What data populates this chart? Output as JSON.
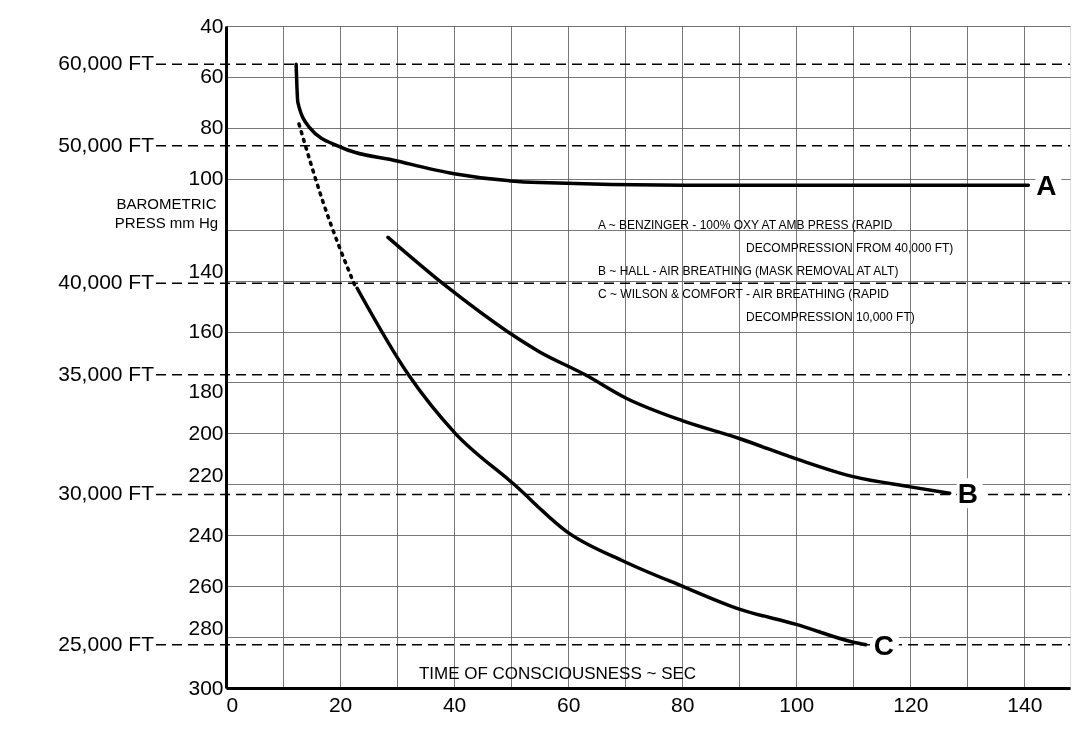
{
  "chart_data": {
    "type": "line",
    "xlabel": "TIME OF CONSCIOUSNESS ~ SEC",
    "ylabel": "BAROMETRIC PRESS mm Hg",
    "xlim": [
      0,
      148
    ],
    "xticks": [
      0,
      {
        "value": 10,
        "label": null
      },
      20,
      {
        "value": 30,
        "label": null
      },
      40,
      {
        "value": 50,
        "label": null
      },
      60,
      {
        "value": 70,
        "label": null
      },
      80,
      {
        "value": 90,
        "label": null
      },
      100,
      {
        "value": 110,
        "label": null
      },
      120,
      {
        "value": 130,
        "label": null
      },
      140
    ],
    "ylim": [
      300,
      40
    ],
    "yticks": [
      40,
      60,
      80,
      100,
      {
        "value": 120,
        "label": null
      },
      140,
      160,
      180,
      200,
      220,
      240,
      260,
      280,
      300
    ],
    "ref_lines": [
      {
        "axis": "y",
        "value": 55,
        "label": "60,000 FT",
        "line_style": "dashed"
      },
      {
        "axis": "y",
        "value": 87,
        "label": "50,000 FT",
        "line_style": "dashed"
      },
      {
        "axis": "y",
        "value": 141,
        "label": "40,000 FT",
        "line_style": "dashed"
      },
      {
        "axis": "y",
        "value": 177,
        "label": "35,000 FT",
        "line_style": "dashed"
      },
      {
        "axis": "y",
        "value": 224,
        "label": "30,000 FT",
        "line_style": "dashed"
      },
      {
        "axis": "y",
        "value": 283,
        "label": "25,000 FT",
        "line_style": "dashed"
      }
    ],
    "grid": true,
    "series": [
      {
        "name": "A",
        "color": "#000000",
        "x": [
          12.3,
          12.6,
          14.7,
          20,
          30,
          40,
          55,
          80,
          140.7
        ],
        "values": [
          55,
          70,
          80,
          87.5,
          93,
          98,
          101.5,
          102.5,
          102.5
        ]
      },
      {
        "name": "B",
        "color": "#000000",
        "x": [
          28.4,
          38.5,
          55,
          63,
          70,
          80,
          90,
          100,
          110,
          120,
          126.9
        ],
        "values": [
          123,
          142,
          168,
          177,
          186,
          195,
          202,
          210,
          217,
          221,
          223.5
        ]
      },
      {
        "color": "#000000",
        "line_style": "dotted",
        "x": [
          12.8,
          17,
          22.6
        ],
        "values": [
          78.5,
          109,
          142
        ]
      },
      {
        "name": "C",
        "color": "#000000",
        "x": [
          23,
          32,
          40.2,
          50.5,
          60,
          70,
          80,
          90,
          100,
          110,
          112.2
        ],
        "values": [
          143,
          177,
          200,
          220,
          239,
          250.5,
          260,
          269,
          275,
          282,
          283
        ]
      }
    ],
    "annotations": [
      "A ~ BENZINGER - 100% OXY AT AMB PRESS (RAPID DECOMPRESSION FROM 40,000 FT)",
      "B ~ HALL - AIR BREATHING (MASK REMOVAL AT ALT)",
      "C ~ WILSON & COMFORT - AIR BREATHING (RAPID DECOMPRESSION 10,000 FT)"
    ]
  }
}
